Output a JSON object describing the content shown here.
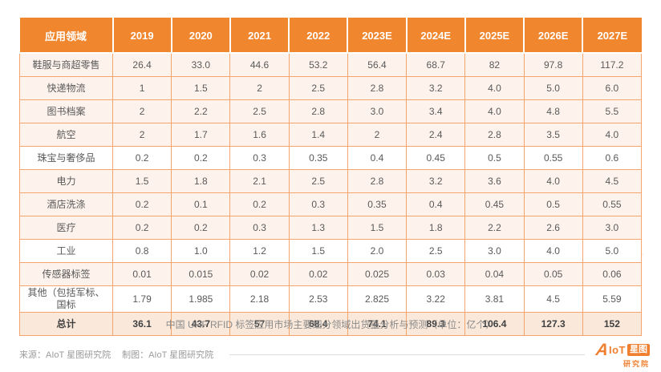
{
  "chart_data": {
    "type": "table",
    "title": "中国 UHF RFID 标签应用市场主要细分领域出货量分析与预测（单位：亿个）",
    "unit": "亿个",
    "columns": [
      "应用领域",
      "2019",
      "2020",
      "2021",
      "2022",
      "2023E",
      "2024E",
      "2025E",
      "2026E",
      "2027E"
    ],
    "rows": [
      {
        "label": "鞋服与商超零售",
        "values": [
          "26.4",
          "33.0",
          "44.6",
          "53.2",
          "56.4",
          "68.7",
          "82",
          "97.8",
          "117.2"
        ]
      },
      {
        "label": "快递物流",
        "values": [
          "1",
          "1.5",
          "2",
          "2.5",
          "2.8",
          "3.2",
          "4.0",
          "5.0",
          "6.0"
        ]
      },
      {
        "label": "图书档案",
        "values": [
          "2",
          "2.2",
          "2.5",
          "2.8",
          "3.0",
          "3.4",
          "4.0",
          "4.8",
          "5.5"
        ]
      },
      {
        "label": "航空",
        "values": [
          "2",
          "1.7",
          "1.6",
          "1.4",
          "2",
          "2.4",
          "2.8",
          "3.5",
          "4.0"
        ]
      },
      {
        "label": "珠宝与奢侈品",
        "values": [
          "0.2",
          "0.2",
          "0.3",
          "0.35",
          "0.4",
          "0.45",
          "0.5",
          "0.55",
          "0.6"
        ],
        "highlight_white": true
      },
      {
        "label": "电力",
        "values": [
          "1.5",
          "1.8",
          "2.1",
          "2.5",
          "2.8",
          "3.2",
          "3.6",
          "4.0",
          "4.5"
        ]
      },
      {
        "label": "酒店洗涤",
        "values": [
          "0.2",
          "0.1",
          "0.2",
          "0.3",
          "0.35",
          "0.4",
          "0.45",
          "0.5",
          "0.55"
        ]
      },
      {
        "label": "医疗",
        "values": [
          "0.2",
          "0.2",
          "0.3",
          "1.3",
          "1.5",
          "1.8",
          "2.2",
          "2.6",
          "3.0"
        ]
      },
      {
        "label": "工业",
        "values": [
          "0.8",
          "1.0",
          "1.2",
          "1.5",
          "2.0",
          "2.5",
          "3.0",
          "4.0",
          "5.0"
        ],
        "highlight_white": true
      },
      {
        "label": "传感器标签",
        "values": [
          "0.01",
          "0.015",
          "0.02",
          "0.02",
          "0.025",
          "0.03",
          "0.04",
          "0.05",
          "0.06"
        ]
      },
      {
        "label": "其他（包括军标、\n国标",
        "values": [
          "1.79",
          "1.985",
          "2.18",
          "2.53",
          "2.825",
          "3.22",
          "3.81",
          "4.5",
          "5.59"
        ],
        "highlight_white": true
      },
      {
        "label": "总计",
        "values": [
          "36.1",
          "43.7",
          "57",
          "68.4",
          "74.1",
          "89.3",
          "106.4",
          "127.3",
          "152"
        ],
        "total": true
      }
    ]
  },
  "footer": {
    "source": "来源：AIoT 星图研究院",
    "credit": "制图：AIoT 星图研究院"
  },
  "logo": {
    "a": "A",
    "iot": "IoT",
    "xingtu": "星图",
    "yanjiuyuan": "研究院"
  },
  "watermark": "AIoT星图研究院",
  "colors": {
    "header_bg": "#F0862E",
    "cell_border": "#F5A56B",
    "row_bg": "#FDF3EC",
    "total_row_bg": "#FAE9DB",
    "accent": "#F08030",
    "body_text": "#595959",
    "caption_text": "#8A8A8A"
  }
}
